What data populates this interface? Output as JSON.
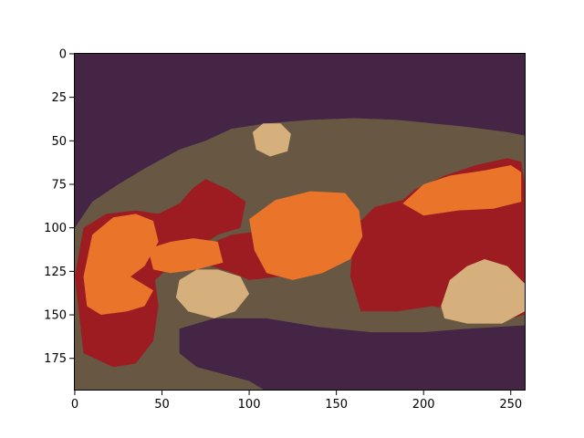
{
  "chart_data": {
    "type": "heatmap",
    "title": "",
    "xlabel": "",
    "ylabel": "",
    "image_width": 259,
    "image_height": 194,
    "xlim": [
      -0.5,
      258.5
    ],
    "ylim": [
      193.5,
      -0.5
    ],
    "x_ticks": [
      0,
      50,
      100,
      150,
      200,
      250
    ],
    "y_ticks": [
      0,
      25,
      50,
      75,
      100,
      125,
      150,
      175
    ],
    "grid": false,
    "legend": "none",
    "palette": {
      "background": "#452546",
      "tissue": "#685843",
      "dark_red": "#9c1c21",
      "orange": "#eb742b",
      "tan": "#d5b07c"
    },
    "regions": [
      {
        "class": "tissue",
        "polygon": [
          [
            0,
            100
          ],
          [
            10,
            85
          ],
          [
            25,
            75
          ],
          [
            40,
            66
          ],
          [
            60,
            55
          ],
          [
            75,
            50
          ],
          [
            90,
            43
          ],
          [
            110,
            40
          ],
          [
            135,
            38
          ],
          [
            160,
            37
          ],
          [
            185,
            38
          ],
          [
            205,
            40
          ],
          [
            225,
            42
          ],
          [
            248,
            45
          ],
          [
            258,
            47
          ],
          [
            258,
            194
          ],
          [
            0,
            194
          ]
        ]
      },
      {
        "class": "background",
        "polygon": [
          [
            60,
            158
          ],
          [
            80,
            152
          ],
          [
            110,
            152
          ],
          [
            140,
            157
          ],
          [
            170,
            160
          ],
          [
            200,
            160
          ],
          [
            225,
            158
          ],
          [
            258,
            156
          ],
          [
            258,
            194
          ],
          [
            110,
            194
          ],
          [
            100,
            188
          ],
          [
            70,
            180
          ],
          [
            60,
            172
          ]
        ]
      },
      {
        "class": "dark_red",
        "polygon": [
          [
            0,
            128
          ],
          [
            5,
            100
          ],
          [
            18,
            92
          ],
          [
            35,
            90
          ],
          [
            48,
            92
          ],
          [
            60,
            86
          ],
          [
            68,
            77
          ],
          [
            75,
            72
          ],
          [
            88,
            78
          ],
          [
            98,
            85
          ],
          [
            95,
            100
          ],
          [
            82,
            104
          ],
          [
            70,
            112
          ],
          [
            55,
            122
          ],
          [
            46,
            130
          ],
          [
            48,
            145
          ],
          [
            45,
            165
          ],
          [
            35,
            178
          ],
          [
            22,
            180
          ],
          [
            5,
            172
          ]
        ]
      },
      {
        "class": "dark_red",
        "polygon": [
          [
            195,
            78
          ],
          [
            212,
            70
          ],
          [
            230,
            64
          ],
          [
            248,
            60
          ],
          [
            256,
            62
          ],
          [
            258,
            75
          ],
          [
            258,
            150
          ],
          [
            250,
            152
          ],
          [
            225,
            148
          ],
          [
            205,
            145
          ],
          [
            185,
            148
          ],
          [
            164,
            148
          ],
          [
            158,
            128
          ],
          [
            160,
            100
          ],
          [
            172,
            88
          ],
          [
            188,
            84
          ]
        ]
      },
      {
        "class": "dark_red",
        "polygon": [
          [
            75,
            110
          ],
          [
            90,
            104
          ],
          [
            105,
            102
          ],
          [
            120,
            106
          ],
          [
            125,
            116
          ],
          [
            118,
            128
          ],
          [
            100,
            130
          ],
          [
            88,
            125
          ],
          [
            78,
            122
          ]
        ]
      },
      {
        "class": "orange",
        "polygon": [
          [
            5,
            128
          ],
          [
            10,
            104
          ],
          [
            22,
            94
          ],
          [
            35,
            92
          ],
          [
            45,
            96
          ],
          [
            48,
            108
          ],
          [
            40,
            122
          ],
          [
            32,
            128
          ],
          [
            45,
            136
          ],
          [
            40,
            145
          ],
          [
            30,
            148
          ],
          [
            15,
            150
          ],
          [
            7,
            145
          ]
        ]
      },
      {
        "class": "orange",
        "polygon": [
          [
            100,
            95
          ],
          [
            115,
            84
          ],
          [
            135,
            79
          ],
          [
            155,
            80
          ],
          [
            163,
            90
          ],
          [
            165,
            105
          ],
          [
            158,
            118
          ],
          [
            142,
            126
          ],
          [
            125,
            130
          ],
          [
            110,
            126
          ],
          [
            103,
            113
          ]
        ]
      },
      {
        "class": "orange",
        "polygon": [
          [
            42,
            112
          ],
          [
            55,
            108
          ],
          [
            68,
            106
          ],
          [
            82,
            108
          ],
          [
            85,
            120
          ],
          [
            70,
            124
          ],
          [
            55,
            126
          ],
          [
            45,
            124
          ]
        ]
      },
      {
        "class": "orange",
        "polygon": [
          [
            188,
            86
          ],
          [
            200,
            75
          ],
          [
            215,
            70
          ],
          [
            235,
            67
          ],
          [
            250,
            64
          ],
          [
            256,
            68
          ],
          [
            256,
            85
          ],
          [
            240,
            89
          ],
          [
            220,
            90
          ],
          [
            200,
            93
          ]
        ]
      },
      {
        "class": "tan",
        "polygon": [
          [
            60,
            130
          ],
          [
            70,
            124
          ],
          [
            82,
            124
          ],
          [
            95,
            128
          ],
          [
            100,
            138
          ],
          [
            92,
            148
          ],
          [
            80,
            152
          ],
          [
            65,
            148
          ],
          [
            58,
            140
          ]
        ]
      },
      {
        "class": "tan",
        "polygon": [
          [
            210,
            145
          ],
          [
            215,
            130
          ],
          [
            225,
            122
          ],
          [
            235,
            118
          ],
          [
            248,
            122
          ],
          [
            258,
            132
          ],
          [
            258,
            148
          ],
          [
            245,
            155
          ],
          [
            225,
            155
          ],
          [
            212,
            152
          ]
        ]
      },
      {
        "class": "tan",
        "polygon": [
          [
            102,
            45
          ],
          [
            108,
            40
          ],
          [
            118,
            40
          ],
          [
            124,
            46
          ],
          [
            122,
            56
          ],
          [
            112,
            59
          ],
          [
            104,
            55
          ]
        ]
      }
    ]
  }
}
